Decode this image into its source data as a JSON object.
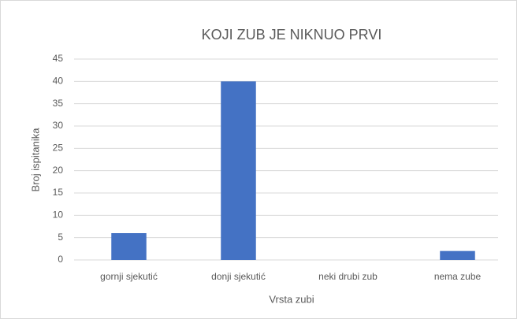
{
  "chart_data": {
    "type": "bar",
    "title": "KOJI ZUB JE NIKNUO PRVI",
    "categories": [
      "gornji sjekutić",
      "donji sjekutić",
      "neki drubi zub",
      "nema zube"
    ],
    "values": [
      6,
      40,
      0,
      2
    ],
    "color": "#4472c4",
    "x_label": "Vrsta zubi",
    "y_label": "Broj ispitanika",
    "ylim": [
      0,
      45
    ],
    "yticks": [
      0,
      5,
      10,
      15,
      20,
      25,
      30,
      35,
      40,
      45
    ],
    "grid": true
  }
}
